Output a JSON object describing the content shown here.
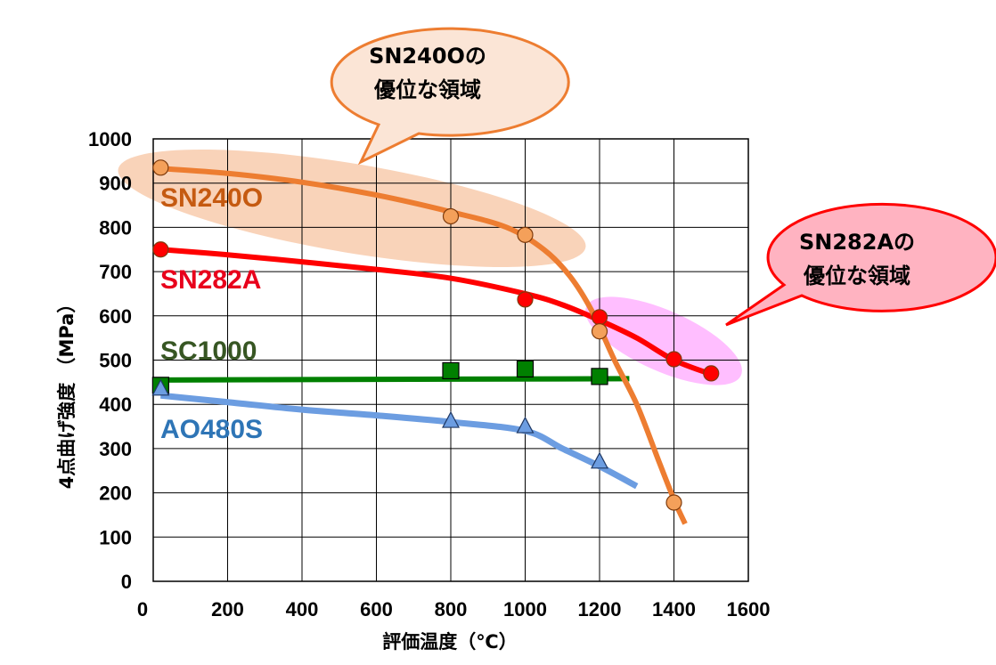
{
  "chart_data": {
    "type": "line",
    "xlabel": "評価温度（℃）",
    "ylabel": "4点曲げ強度 （MPa）",
    "xlim": [
      0,
      1600
    ],
    "ylim": [
      0,
      1000
    ],
    "x_ticks": [
      0,
      200,
      400,
      600,
      800,
      1000,
      1200,
      1400,
      1600
    ],
    "y_ticks": [
      0,
      100,
      200,
      300,
      400,
      500,
      600,
      700,
      800,
      900,
      1000
    ],
    "highlighted_x_ticks": [
      1200,
      1400
    ],
    "highlight_tick_color": "#ff0000",
    "grid": true,
    "series": [
      {
        "name": "SN240O",
        "color": "#ed7d31",
        "label_color": "#c55a11",
        "marker": "circle",
        "marker_fill": "#f4a05a",
        "points": [
          [
            20,
            935
          ],
          [
            800,
            825
          ],
          [
            1000,
            783
          ],
          [
            1200,
            565
          ],
          [
            1400,
            178
          ]
        ],
        "curve": [
          [
            20,
            933
          ],
          [
            200,
            922
          ],
          [
            400,
            902
          ],
          [
            600,
            873
          ],
          [
            800,
            835
          ],
          [
            950,
            800
          ],
          [
            1050,
            750
          ],
          [
            1120,
            690
          ],
          [
            1180,
            610
          ],
          [
            1240,
            500
          ],
          [
            1300,
            400
          ],
          [
            1360,
            270
          ],
          [
            1400,
            185
          ],
          [
            1430,
            130
          ]
        ]
      },
      {
        "name": "SN282A",
        "color": "#ff0000",
        "label_color": "#e8001c",
        "marker": "circle",
        "marker_fill": "#ff0000",
        "points": [
          [
            20,
            750
          ],
          [
            1000,
            637
          ],
          [
            1200,
            597
          ],
          [
            1400,
            502
          ],
          [
            1500,
            470
          ]
        ],
        "curve": [
          [
            20,
            750
          ],
          [
            200,
            738
          ],
          [
            400,
            722
          ],
          [
            600,
            705
          ],
          [
            800,
            685
          ],
          [
            1000,
            650
          ],
          [
            1100,
            625
          ],
          [
            1200,
            590
          ],
          [
            1300,
            550
          ],
          [
            1400,
            500
          ],
          [
            1500,
            468
          ]
        ]
      },
      {
        "name": "SC1000",
        "color": "#008000",
        "label_color": "#375623",
        "marker": "square",
        "marker_fill": "#008000",
        "points": [
          [
            20,
            443
          ],
          [
            800,
            476
          ],
          [
            1000,
            480
          ],
          [
            1200,
            463
          ]
        ],
        "curve": [
          [
            20,
            455
          ],
          [
            1280,
            458
          ]
        ]
      },
      {
        "name": "AO480S",
        "color": "#6c9de1",
        "label_color": "#2e75b6",
        "marker": "triangle",
        "marker_fill": "#6c9de1",
        "points": [
          [
            20,
            435
          ],
          [
            800,
            362
          ],
          [
            1000,
            350
          ],
          [
            1200,
            270
          ]
        ],
        "curve": [
          [
            20,
            420
          ],
          [
            200,
            405
          ],
          [
            400,
            388
          ],
          [
            600,
            375
          ],
          [
            800,
            360
          ],
          [
            1000,
            340
          ],
          [
            1100,
            300
          ],
          [
            1200,
            260
          ],
          [
            1300,
            215
          ]
        ]
      }
    ],
    "annotations": [
      {
        "id": "sn240o",
        "text_line1": "SN240Oの",
        "text_line2": "優位な領域",
        "fill": "#fbe5d6",
        "stroke": "#ed7d31"
      },
      {
        "id": "sn282a",
        "text_line1": "SN282Aの",
        "text_line2": "優位な領域",
        "fill": "#ffb3c1",
        "stroke": "#ff0000"
      }
    ],
    "highlight_regions": [
      {
        "for": "SN240O",
        "color": "#f8cbad"
      },
      {
        "for": "SN282A",
        "color": "#ffb3ff"
      }
    ]
  }
}
